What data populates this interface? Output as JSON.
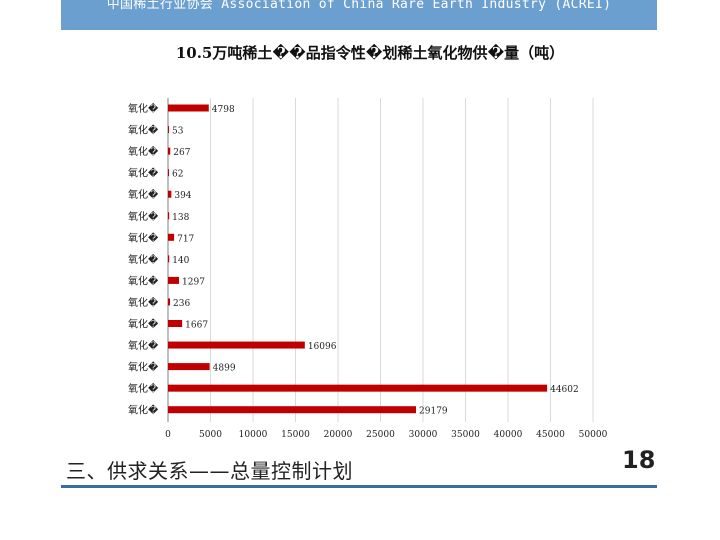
{
  "header": {
    "text": "中国稀土行业协会 Association of China Rare Earth Industry (ACREI)"
  },
  "slide": {
    "footer_title": "三、供求关系——总量控制计划",
    "page_number": "18"
  },
  "colors": {
    "header_band": "#6b9fcf",
    "bar": "#c00000",
    "footer_rule": "#3a6aa8"
  },
  "chart_data": {
    "type": "bar",
    "orientation": "horizontal",
    "title": "10.5万吨稀土��品指令性�划稀土氧化物供�量（吨）",
    "categories": [
      "氧化�",
      "氧化�",
      "氧化�",
      "氧化�",
      "氧化�",
      "氧化�",
      "氧化�",
      "氧化�",
      "氧化�",
      "氧化�",
      "氧化�",
      "氧化�",
      "氧化�",
      "氧化�",
      "氧化�"
    ],
    "values": [
      4798,
      53,
      267,
      62,
      394,
      138,
      717,
      140,
      1297,
      236,
      1667,
      16096,
      4899,
      44602,
      29179
    ],
    "xlim": [
      0,
      50000
    ],
    "xticks": [
      0,
      5000,
      10000,
      15000,
      20000,
      25000,
      30000,
      35000,
      40000,
      45000,
      50000
    ],
    "grid": true,
    "data_labels": true
  }
}
